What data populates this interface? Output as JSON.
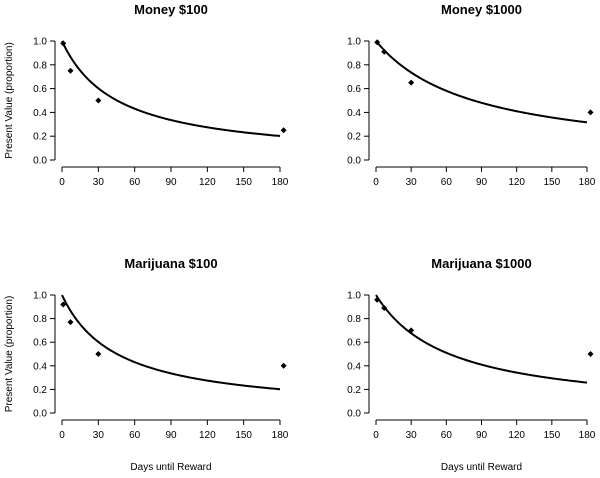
{
  "chart_data": [
    {
      "type": "scatter",
      "title": "Money $100",
      "xlabel": "",
      "ylabel": "Present Value (proportion)",
      "xlim": [
        0,
        180
      ],
      "ylim": [
        0,
        1.0
      ],
      "xticks": [
        0,
        30,
        60,
        90,
        120,
        150,
        180
      ],
      "yticks": [
        0.0,
        0.2,
        0.4,
        0.6,
        0.8,
        1.0
      ],
      "points": [
        {
          "x": 1,
          "y": 0.98
        },
        {
          "x": 7,
          "y": 0.75
        },
        {
          "x": 30,
          "y": 0.5
        },
        {
          "x": 183,
          "y": 0.25
        }
      ],
      "fit": {
        "k": 0.022
      }
    },
    {
      "type": "scatter",
      "title": "Money $1000",
      "xlabel": "",
      "ylabel": "",
      "xlim": [
        0,
        180
      ],
      "ylim": [
        0,
        1.0
      ],
      "xticks": [
        0,
        30,
        60,
        90,
        120,
        150,
        180
      ],
      "yticks": [
        0.0,
        0.2,
        0.4,
        0.6,
        0.8,
        1.0
      ],
      "points": [
        {
          "x": 1,
          "y": 0.99
        },
        {
          "x": 7,
          "y": 0.91
        },
        {
          "x": 30,
          "y": 0.65
        },
        {
          "x": 183,
          "y": 0.4
        }
      ],
      "fit": {
        "k": 0.012
      }
    },
    {
      "type": "scatter",
      "title": "Marijuana $100",
      "xlabel": "Days until Reward",
      "ylabel": "Present Value (proportion)",
      "xlim": [
        0,
        180
      ],
      "ylim": [
        0,
        1.0
      ],
      "xticks": [
        0,
        30,
        60,
        90,
        120,
        150,
        180
      ],
      "yticks": [
        0.0,
        0.2,
        0.4,
        0.6,
        0.8,
        1.0
      ],
      "points": [
        {
          "x": 1,
          "y": 0.92
        },
        {
          "x": 7,
          "y": 0.77
        },
        {
          "x": 30,
          "y": 0.5
        },
        {
          "x": 183,
          "y": 0.4
        }
      ],
      "fit": {
        "k": 0.022
      }
    },
    {
      "type": "scatter",
      "title": "Marijuana $1000",
      "xlabel": "Days until Reward",
      "ylabel": "",
      "xlim": [
        0,
        180
      ],
      "ylim": [
        0,
        1.0
      ],
      "xticks": [
        0,
        30,
        60,
        90,
        120,
        150,
        180
      ],
      "yticks": [
        0.0,
        0.2,
        0.4,
        0.6,
        0.8,
        1.0
      ],
      "points": [
        {
          "x": 1,
          "y": 0.96
        },
        {
          "x": 7,
          "y": 0.89
        },
        {
          "x": 30,
          "y": 0.7
        },
        {
          "x": 183,
          "y": 0.5
        }
      ],
      "fit": {
        "k": 0.016
      }
    }
  ]
}
